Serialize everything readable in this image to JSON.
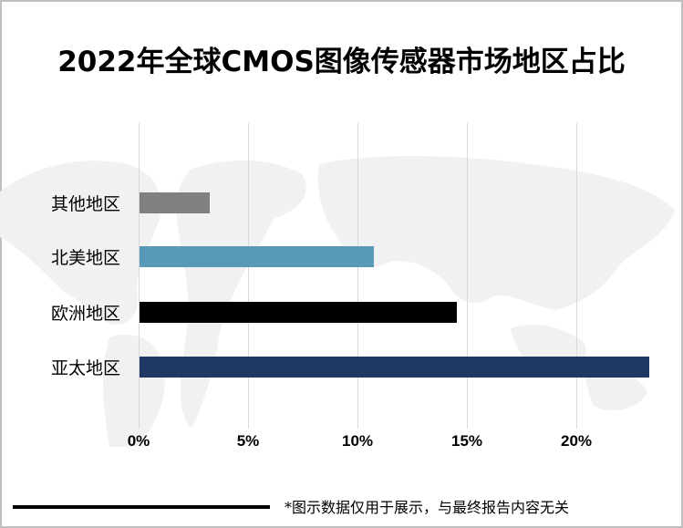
{
  "chart_data": {
    "type": "bar",
    "orientation": "horizontal",
    "title": "2022年全球CMOS图像传感器市场地区占比",
    "categories": [
      "其他地区",
      "北美地区",
      "欧洲地区",
      "亚太地区"
    ],
    "values": [
      3.2,
      10.7,
      14.5,
      23.3
    ],
    "value_unit": "%",
    "colors": [
      "#808080",
      "#5899b8",
      "#000000",
      "#1f3864"
    ],
    "xlabel": "",
    "ylabel": "",
    "xlim": [
      0,
      25
    ],
    "x_ticks": [
      "0%",
      "5%",
      "10%",
      "15%",
      "20%"
    ],
    "grid": true,
    "legend": null
  },
  "footer": {
    "note": "*图示数据仅用于展示，与最终报告内容无关"
  }
}
